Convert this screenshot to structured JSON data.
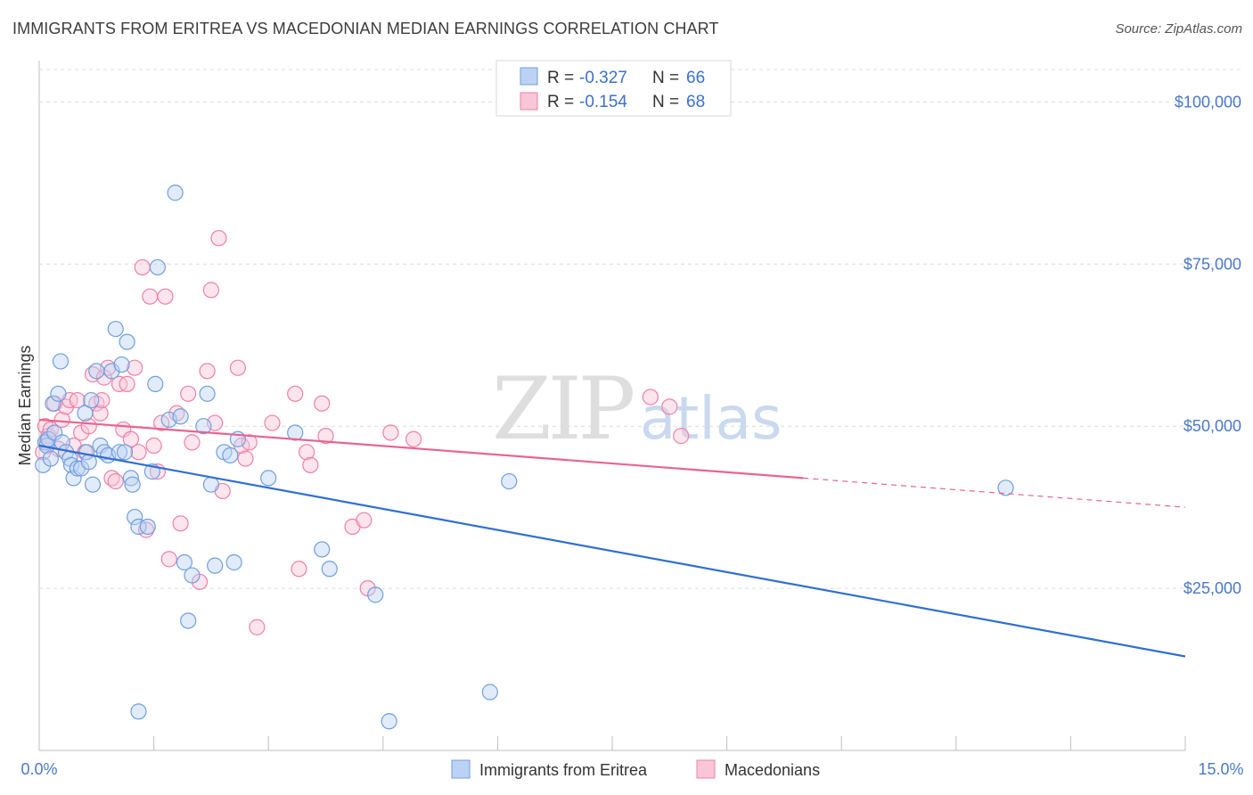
{
  "title": "IMMIGRANTS FROM ERITREA VS MACEDONIAN MEDIAN EARNINGS CORRELATION CHART",
  "source": "Source: ZipAtlas.com",
  "watermark": {
    "zip": "ZIP",
    "atlas": "atlas"
  },
  "colors": {
    "blue": "#6f9fe0",
    "blue_line": "#2f6fd1",
    "pink": "#f07fa6",
    "pink_line": "#e8648f",
    "axis_label": "#4a78c9"
  },
  "legend": {
    "series1": {
      "r_label": "R =",
      "r_value": "-0.327",
      "n_label": "N =",
      "n_value": "66"
    },
    "series2": {
      "r_label": "R =",
      "r_value": "-0.154",
      "n_label": "N =",
      "n_value": "68"
    }
  },
  "chart_data": {
    "type": "scatter",
    "title": "IMMIGRANTS FROM ERITREA VS MACEDONIAN MEDIAN EARNINGS CORRELATION CHART",
    "xlabel": "",
    "ylabel": "Median Earnings",
    "xlim": [
      0,
      15
    ],
    "ylim": [
      0,
      105000
    ],
    "x_tick_labels": [
      "0.0%",
      "15.0%"
    ],
    "y_ticks": [
      25000,
      50000,
      75000,
      100000
    ],
    "y_tick_labels": [
      "$25,000",
      "$50,000",
      "$75,000",
      "$100,000"
    ],
    "series": [
      {
        "name": "Immigrants from Eritrea",
        "r": -0.327,
        "n": 66,
        "trend": {
          "x": [
            0,
            15
          ],
          "y": [
            47000,
            14500
          ]
        },
        "points": [
          [
            0.05,
            44000
          ],
          [
            0.08,
            47500
          ],
          [
            0.1,
            47000
          ],
          [
            0.12,
            48000
          ],
          [
            0.15,
            45000
          ],
          [
            0.18,
            53500
          ],
          [
            0.2,
            49000
          ],
          [
            0.25,
            55000
          ],
          [
            0.28,
            60000
          ],
          [
            0.3,
            47500
          ],
          [
            0.35,
            46000
          ],
          [
            0.4,
            45000
          ],
          [
            0.42,
            44000
          ],
          [
            0.45,
            42000
          ],
          [
            0.5,
            43500
          ],
          [
            0.55,
            43500
          ],
          [
            0.6,
            52000
          ],
          [
            0.62,
            46000
          ],
          [
            0.65,
            44500
          ],
          [
            0.68,
            54000
          ],
          [
            0.7,
            41000
          ],
          [
            0.75,
            58500
          ],
          [
            0.8,
            47000
          ],
          [
            0.85,
            46000
          ],
          [
            0.9,
            45500
          ],
          [
            0.95,
            58500
          ],
          [
            1.0,
            65000
          ],
          [
            1.05,
            46000
          ],
          [
            1.08,
            59500
          ],
          [
            1.12,
            46000
          ],
          [
            1.15,
            63000
          ],
          [
            1.2,
            42000
          ],
          [
            1.22,
            41000
          ],
          [
            1.25,
            36000
          ],
          [
            1.3,
            34500
          ],
          [
            1.3,
            6000
          ],
          [
            1.42,
            34500
          ],
          [
            1.48,
            43000
          ],
          [
            1.52,
            56500
          ],
          [
            1.55,
            74500
          ],
          [
            1.7,
            51000
          ],
          [
            1.78,
            86000
          ],
          [
            1.85,
            51500
          ],
          [
            1.9,
            29000
          ],
          [
            1.95,
            20000
          ],
          [
            2.0,
            27000
          ],
          [
            2.15,
            50000
          ],
          [
            2.2,
            55000
          ],
          [
            2.25,
            41000
          ],
          [
            2.3,
            28500
          ],
          [
            2.42,
            46000
          ],
          [
            2.5,
            45500
          ],
          [
            2.55,
            29000
          ],
          [
            2.6,
            48000
          ],
          [
            3.0,
            42000
          ],
          [
            3.35,
            49000
          ],
          [
            3.7,
            31000
          ],
          [
            3.8,
            28000
          ],
          [
            4.4,
            24000
          ],
          [
            4.58,
            4500
          ],
          [
            5.9,
            9000
          ],
          [
            6.15,
            41500
          ],
          [
            12.65,
            40500
          ]
        ]
      },
      {
        "name": "Macedonians",
        "r": -0.154,
        "n": 68,
        "trend": {
          "x": [
            0,
            10.0
          ],
          "y": [
            51000,
            42000
          ]
        },
        "trend_dashed": {
          "x": [
            10.0,
            15
          ],
          "y": [
            42000,
            37500
          ]
        },
        "points": [
          [
            0.05,
            46000
          ],
          [
            0.08,
            50000
          ],
          [
            0.1,
            47500
          ],
          [
            0.12,
            48500
          ],
          [
            0.15,
            49500
          ],
          [
            0.2,
            53500
          ],
          [
            0.25,
            46500
          ],
          [
            0.3,
            51000
          ],
          [
            0.35,
            53000
          ],
          [
            0.4,
            54000
          ],
          [
            0.45,
            47000
          ],
          [
            0.5,
            54000
          ],
          [
            0.55,
            49000
          ],
          [
            0.6,
            46000
          ],
          [
            0.65,
            50000
          ],
          [
            0.7,
            58000
          ],
          [
            0.75,
            53500
          ],
          [
            0.8,
            52000
          ],
          [
            0.82,
            54000
          ],
          [
            0.85,
            57500
          ],
          [
            0.9,
            59000
          ],
          [
            0.95,
            42000
          ],
          [
            1.0,
            41500
          ],
          [
            1.05,
            56500
          ],
          [
            1.1,
            49500
          ],
          [
            1.15,
            56500
          ],
          [
            1.2,
            48000
          ],
          [
            1.25,
            59000
          ],
          [
            1.3,
            46000
          ],
          [
            1.35,
            74500
          ],
          [
            1.4,
            34000
          ],
          [
            1.45,
            70000
          ],
          [
            1.5,
            47000
          ],
          [
            1.55,
            43000
          ],
          [
            1.6,
            50500
          ],
          [
            1.65,
            70000
          ],
          [
            1.7,
            29500
          ],
          [
            1.8,
            52000
          ],
          [
            1.85,
            35000
          ],
          [
            1.95,
            55000
          ],
          [
            2.0,
            47500
          ],
          [
            2.1,
            26000
          ],
          [
            2.2,
            58500
          ],
          [
            2.25,
            71000
          ],
          [
            2.3,
            50500
          ],
          [
            2.35,
            79000
          ],
          [
            2.4,
            40000
          ],
          [
            2.6,
            59000
          ],
          [
            2.65,
            47000
          ],
          [
            2.7,
            45000
          ],
          [
            2.75,
            47500
          ],
          [
            2.85,
            19000
          ],
          [
            3.05,
            50500
          ],
          [
            3.35,
            55000
          ],
          [
            3.4,
            28000
          ],
          [
            3.5,
            46000
          ],
          [
            3.55,
            44000
          ],
          [
            3.7,
            53500
          ],
          [
            3.75,
            48500
          ],
          [
            4.1,
            34500
          ],
          [
            4.25,
            35500
          ],
          [
            4.3,
            25000
          ],
          [
            4.6,
            49000
          ],
          [
            4.9,
            48000
          ],
          [
            8.0,
            54500
          ],
          [
            8.25,
            53000
          ],
          [
            8.4,
            48500
          ]
        ]
      }
    ],
    "legend_position": "top-center",
    "bottom_legend": [
      "Immigrants from Eritrea",
      "Macedonians"
    ]
  }
}
